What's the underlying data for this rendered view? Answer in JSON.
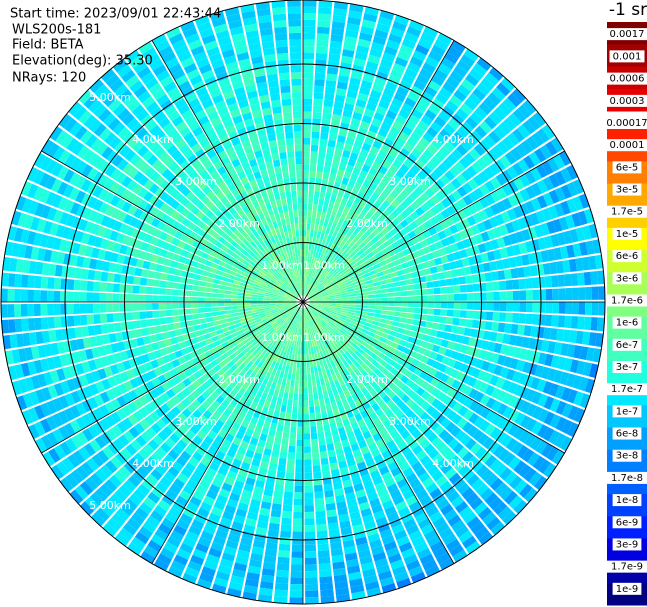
{
  "info": {
    "start_time": "Start time: 2023/09/01 22:43:44",
    "instrument": "WLS200s-181",
    "field": "Field: BETA",
    "elevation": "Elevation(deg): 35.30",
    "nrays": "NRays: 120"
  },
  "range_labels": [
    "1.00km",
    "2.00km",
    "3.00km",
    "4.00km",
    "5.00km"
  ],
  "colorbar": {
    "title": "-1 sr",
    "entries": [
      {
        "label": "0.0017",
        "color": "#800000"
      },
      {
        "label": "0.001",
        "color": "#a00000"
      },
      {
        "label": "0.0006",
        "color": "#c80000"
      },
      {
        "label": "0.0003",
        "color": "#e80000"
      },
      {
        "label": "0.00017",
        "color": "#ff2000"
      },
      {
        "label": "0.0001",
        "color": "#ff4800"
      },
      {
        "label": "6e-5",
        "color": "#ff8000"
      },
      {
        "label": "3e-5",
        "color": "#ffa800"
      },
      {
        "label": "1.7e-5",
        "color": "#ffd000"
      },
      {
        "label": "1e-5",
        "color": "#ffff00"
      },
      {
        "label": "6e-6",
        "color": "#d0ff30"
      },
      {
        "label": "3e-6",
        "color": "#a8ff58"
      },
      {
        "label": "1.7e-6",
        "color": "#80ff80"
      },
      {
        "label": "1e-6",
        "color": "#60ffa0"
      },
      {
        "label": "6e-7",
        "color": "#40ffc0"
      },
      {
        "label": "3e-7",
        "color": "#20ffe0"
      },
      {
        "label": "1.7e-7",
        "color": "#00e8ff"
      },
      {
        "label": "1e-7",
        "color": "#00c8ff"
      },
      {
        "label": "6e-8",
        "color": "#00a0ff"
      },
      {
        "label": "3e-8",
        "color": "#0080ff"
      },
      {
        "label": "1.7e-8",
        "color": "#0060ff"
      },
      {
        "label": "1e-8",
        "color": "#0040ff"
      },
      {
        "label": "6e-9",
        "color": "#0020ff"
      },
      {
        "label": "3e-9",
        "color": "#0000e0"
      },
      {
        "label": "1.7e-9",
        "color": "#0000a8"
      },
      {
        "label": "1e-9",
        "color": "#000080"
      }
    ]
  }
}
